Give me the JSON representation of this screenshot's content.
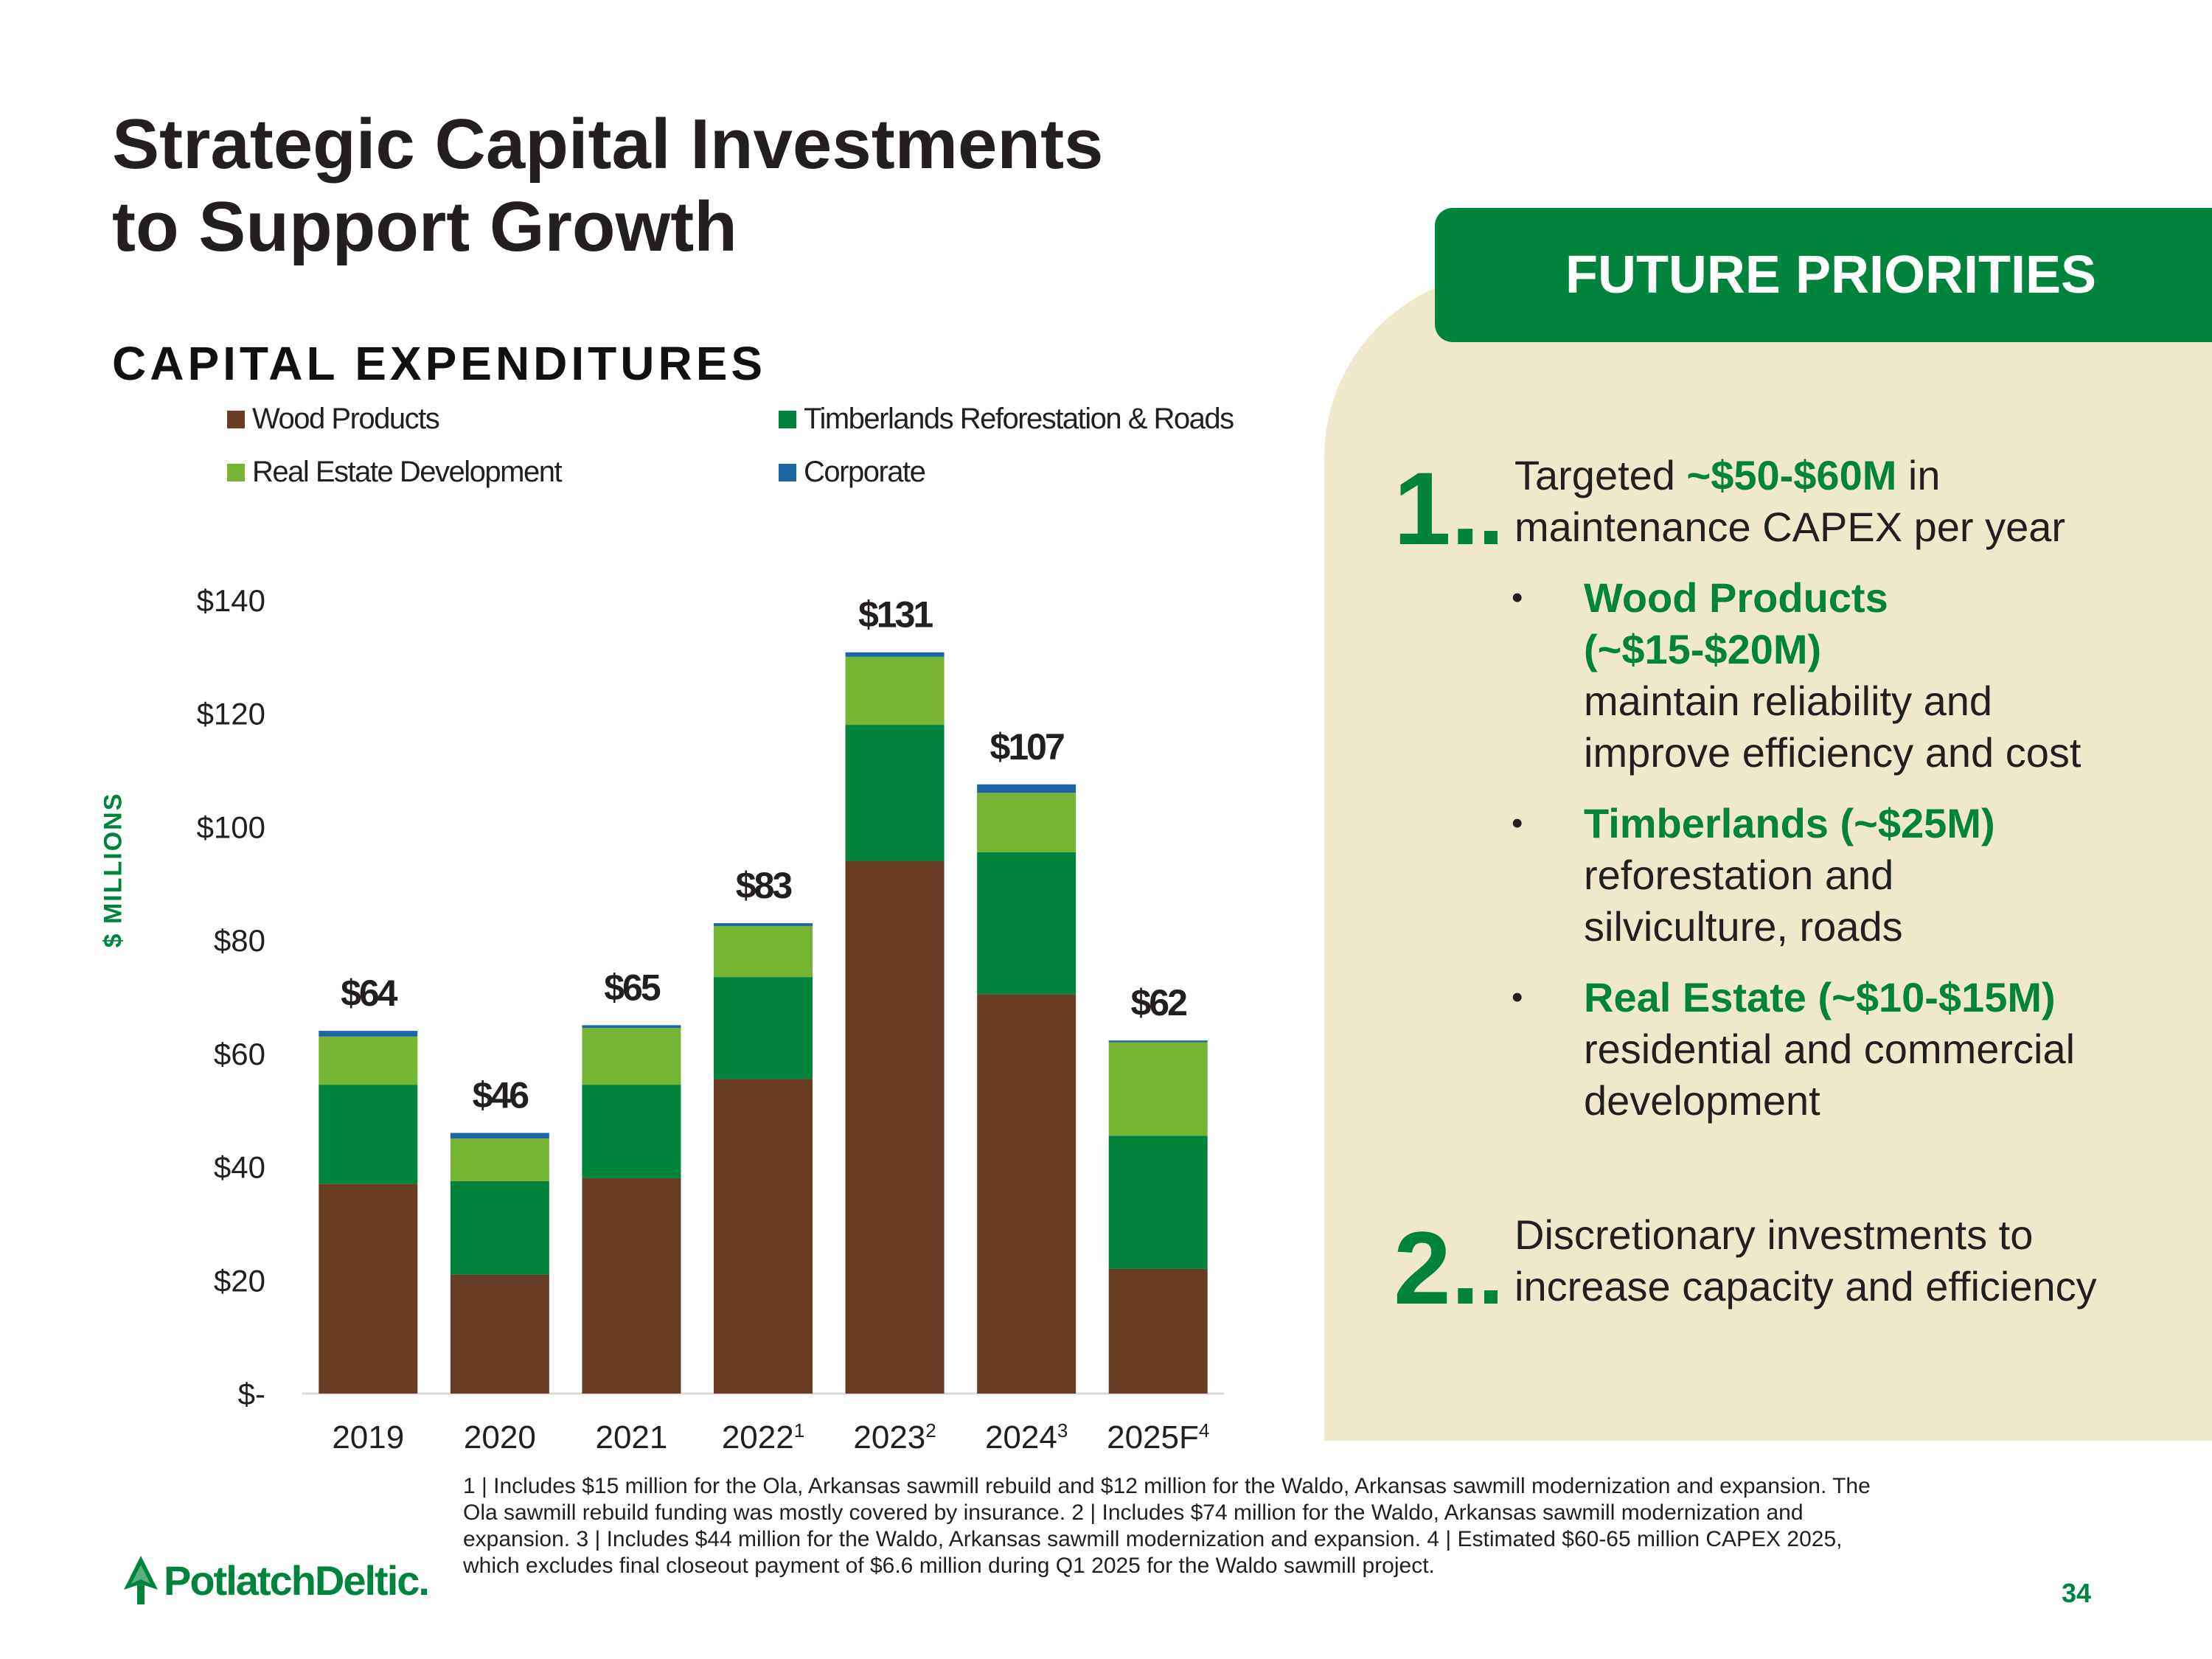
{
  "slide": {
    "title_line1": "Strategic Capital Investments",
    "title_line2": "to Support Growth",
    "subtitle": "CAPITAL EXPENDITURES",
    "page_number": "34",
    "logo_text": "PotlatchDeltic."
  },
  "chart_data": {
    "type": "bar",
    "stacked": true,
    "title": "CAPITAL EXPENDITURES",
    "ylabel": "$ MILLIONS",
    "xlabel": "",
    "ylim": [
      0,
      140
    ],
    "y_ticks": [
      {
        "value": 0,
        "label": "$-"
      },
      {
        "value": 20,
        "label": "$20"
      },
      {
        "value": 40,
        "label": "$40"
      },
      {
        "value": 60,
        "label": "$60"
      },
      {
        "value": 80,
        "label": "$80"
      },
      {
        "value": 100,
        "label": "$100"
      },
      {
        "value": 120,
        "label": "$120"
      },
      {
        "value": 140,
        "label": "$140"
      }
    ],
    "categories": [
      {
        "label": "2019",
        "sup": ""
      },
      {
        "label": "2020",
        "sup": ""
      },
      {
        "label": "2021",
        "sup": ""
      },
      {
        "label": "2022",
        "sup": "1"
      },
      {
        "label": "2023",
        "sup": "2"
      },
      {
        "label": "2024",
        "sup": "3"
      },
      {
        "label": "2025F",
        "sup": "4"
      }
    ],
    "series": [
      {
        "name": "Wood Products",
        "color": "#693c25",
        "values": [
          37,
          21,
          38,
          55.5,
          94,
          70.5,
          22
        ]
      },
      {
        "name": "Timberlands Reforestation & Roads",
        "color": "#00843d",
        "values": [
          17.5,
          16.5,
          16.5,
          18,
          24,
          25,
          23.5
        ]
      },
      {
        "name": "Real Estate Development",
        "color": "#76b433",
        "values": [
          8.5,
          7.5,
          10,
          9,
          12,
          10.5,
          16.5
        ]
      },
      {
        "name": "Corporate",
        "color": "#1b66a5",
        "values": [
          1,
          1,
          0.5,
          0.5,
          0.8,
          1.5,
          0.3
        ]
      }
    ],
    "totals": [
      "$64",
      "$46",
      "$65",
      "$83",
      "$131",
      "$107",
      "$62"
    ],
    "legend_position": "top"
  },
  "priorities": {
    "header": "FUTURE PRIORITIES",
    "item1": {
      "number": "1.",
      "text_pre": "Targeted ",
      "text_highlight": "~$50-$60M",
      "text_post": " in maintenance CAPEX per year",
      "bullets": [
        {
          "symbol": "•",
          "head": "Wood Products (~$15-$20M)",
          "desc": "maintain reliability and improve efficiency and cost"
        },
        {
          "symbol": "•",
          "head": "Timberlands (~$25M)",
          "desc": "reforestation and silviculture, roads"
        },
        {
          "symbol": "•",
          "head": "Real Estate (~$10-$15M)",
          "desc": "residential and commercial development"
        }
      ]
    },
    "item2": {
      "number": "2.",
      "text": "Discretionary investments to increase capacity and efficiency"
    }
  },
  "footnote": "1 | Includes $15 million for the Ola, Arkansas sawmill rebuild and $12 million for the Waldo, Arkansas sawmill modernization and expansion. The Ola sawmill rebuild funding was mostly covered by insurance.  2 | Includes $74 million for the Waldo, Arkansas sawmill modernization and expansion.  3 | Includes $44 million for the Waldo, Arkansas sawmill modernization and expansion.  4 | Estimated $60-65 million CAPEX 2025, which excludes final closeout payment of $6.6 million during Q1 2025 for the Waldo sawmill project."
}
